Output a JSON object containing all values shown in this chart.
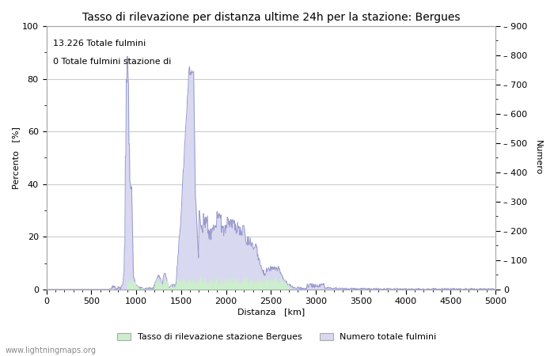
{
  "title": "Tasso di rilevazione per distanza ultime 24h per la stazione: Bergues",
  "xlabel": "Distanza   [km]",
  "ylabel_left": "Percento   [%]",
  "ylabel_right": "Numero",
  "annotation_line1": "13.226 Totale fulmini",
  "annotation_line2": "0 Totale fulmini stazione di",
  "xlim": [
    0,
    5000
  ],
  "ylim_left": [
    0,
    100
  ],
  "ylim_right": [
    0,
    900
  ],
  "xticks": [
    0,
    500,
    1000,
    1500,
    2000,
    2500,
    3000,
    3500,
    4000,
    4500,
    5000
  ],
  "yticks_left": [
    0,
    20,
    40,
    60,
    80,
    100
  ],
  "yticks_right": [
    0,
    100,
    200,
    300,
    400,
    500,
    600,
    700,
    800,
    900
  ],
  "legend_label_green": "Tasso di rilevazione stazione Bergues",
  "legend_label_blue": "Numero totale fulmini",
  "watermark": "www.lightningmaps.org",
  "background_color": "#ffffff",
  "plot_bg_color": "#ffffff",
  "grid_color": "#cccccc",
  "line_color": "#9999cc",
  "fill_color_blue": "#d8d8f0",
  "fill_color_green": "#cceecc",
  "title_fontsize": 10,
  "label_fontsize": 8,
  "tick_fontsize": 8
}
